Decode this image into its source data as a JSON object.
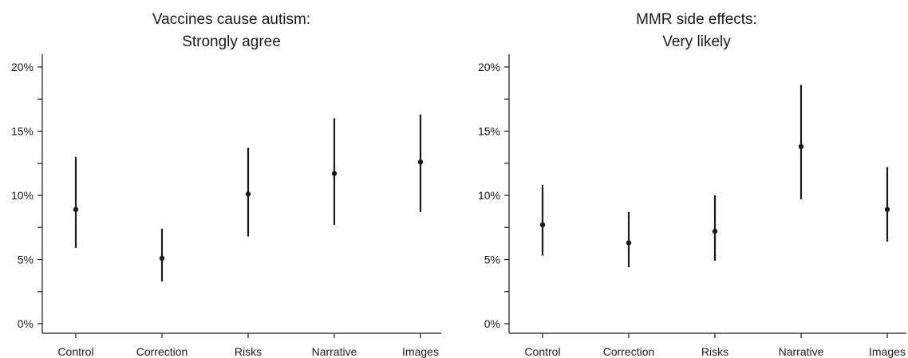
{
  "chart_data": [
    {
      "type": "scatter",
      "title_lines": [
        "Vaccines cause autism:",
        "Strongly agree"
      ],
      "categories": [
        "Control",
        "Correction",
        "Risks",
        "Narrative",
        "Images"
      ],
      "values": [
        8.9,
        5.1,
        10.1,
        11.7,
        12.6
      ],
      "lower": [
        5.9,
        3.3,
        6.8,
        7.7,
        8.7
      ],
      "upper": [
        13.0,
        7.4,
        13.7,
        16.0,
        16.3
      ],
      "ylim": [
        0,
        20
      ],
      "yticks": [
        0,
        5,
        10,
        15,
        20
      ],
      "ytick_labels": [
        "0%",
        "5%",
        "10%",
        "15%",
        "20%"
      ],
      "grid": false
    },
    {
      "type": "scatter",
      "title_lines": [
        "MMR side effects:",
        "Very likely"
      ],
      "categories": [
        "Control",
        "Correction",
        "Risks",
        "Narrative",
        "Images"
      ],
      "values": [
        7.7,
        6.3,
        7.2,
        13.8,
        8.9
      ],
      "lower": [
        5.3,
        4.4,
        4.9,
        9.7,
        6.4
      ],
      "upper": [
        10.8,
        8.7,
        10.0,
        18.6,
        12.2
      ],
      "ylim": [
        0,
        20
      ],
      "yticks": [
        0,
        5,
        10,
        15,
        20
      ],
      "ytick_labels": [
        "0%",
        "5%",
        "10%",
        "15%",
        "20%"
      ],
      "grid": false
    }
  ]
}
